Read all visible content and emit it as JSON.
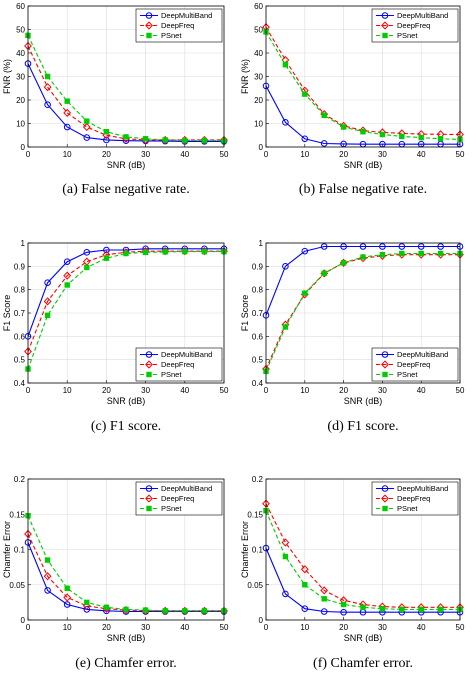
{
  "colors": {
    "DeepMultiBand": "#0000ff",
    "DeepFreq": "#ff0000",
    "PSnet": "#00cc00"
  },
  "chart_data": [
    {
      "id": "a",
      "type": "line",
      "caption": "(a) False negative rate.",
      "xlabel": "SNR (dB)",
      "ylabel": "FNR (%)",
      "xlim": [
        0,
        50
      ],
      "ylim": [
        0,
        60
      ],
      "xticks": [
        "0",
        "10",
        "20",
        "30",
        "40",
        "50"
      ],
      "yticks": [
        "0",
        "10",
        "20",
        "30",
        "40",
        "50",
        "60"
      ],
      "grid": true,
      "legend_position": "top-right",
      "x": [
        0,
        5,
        10,
        15,
        20,
        25,
        30,
        35,
        40,
        45,
        50
      ],
      "series": [
        {
          "name": "DeepMultiBand",
          "marker": "circle",
          "dash": "solid",
          "values": [
            35.5,
            18,
            8.5,
            4,
            3,
            2.7,
            2.6,
            2.5,
            2.4,
            2.4,
            2.4
          ]
        },
        {
          "name": "DeepFreq",
          "marker": "diamond",
          "dash": "dashed",
          "values": [
            43,
            25.5,
            14.5,
            8.5,
            5,
            3.5,
            3,
            3,
            3,
            3,
            3
          ]
        },
        {
          "name": "PSnet",
          "marker": "square",
          "dash": "dashed",
          "values": [
            47.5,
            30,
            19.5,
            11,
            6.5,
            4.3,
            3.5,
            3,
            2.8,
            2.8,
            2.7
          ]
        }
      ]
    },
    {
      "id": "b",
      "type": "line",
      "caption": "(b) False negative rate.",
      "xlabel": "SNR (dB)",
      "ylabel": "FNR (%)",
      "xlim": [
        0,
        50
      ],
      "ylim": [
        0,
        60
      ],
      "xticks": [
        "0",
        "10",
        "20",
        "30",
        "40",
        "50"
      ],
      "yticks": [
        "0",
        "10",
        "20",
        "30",
        "40",
        "50",
        "60"
      ],
      "grid": true,
      "legend_position": "top-right",
      "x": [
        0,
        5,
        10,
        15,
        20,
        25,
        30,
        35,
        40,
        45,
        50
      ],
      "series": [
        {
          "name": "DeepMultiBand",
          "marker": "circle",
          "dash": "solid",
          "values": [
            26,
            10.5,
            3.5,
            1.5,
            1.3,
            1.2,
            1.2,
            1.2,
            1.2,
            1.2,
            1.2
          ]
        },
        {
          "name": "DeepFreq",
          "marker": "diamond",
          "dash": "dashed",
          "values": [
            51,
            37,
            24,
            14,
            9,
            7,
            6.2,
            5.8,
            5.5,
            5.4,
            5.3
          ]
        },
        {
          "name": "PSnet",
          "marker": "square",
          "dash": "dashed",
          "values": [
            49,
            35,
            22.5,
            13.5,
            8.5,
            6.5,
            5.3,
            4.5,
            4,
            3.5,
            3.2
          ]
        }
      ]
    },
    {
      "id": "c",
      "type": "line",
      "caption": "(c) F1 score.",
      "xlabel": "SNR (dB)",
      "ylabel": "F1 Score",
      "xlim": [
        0,
        50
      ],
      "ylim": [
        0.4,
        1
      ],
      "xticks": [
        "0",
        "10",
        "20",
        "30",
        "40",
        "50"
      ],
      "yticks": [
        "0.4",
        "0.5",
        "0.6",
        "0.7",
        "0.8",
        "0.9",
        "1"
      ],
      "grid": true,
      "legend_position": "bottom-right",
      "x": [
        0,
        5,
        10,
        15,
        20,
        25,
        30,
        35,
        40,
        45,
        50
      ],
      "series": [
        {
          "name": "DeepMultiBand",
          "marker": "circle",
          "dash": "solid",
          "values": [
            0.6,
            0.83,
            0.92,
            0.96,
            0.97,
            0.97,
            0.975,
            0.975,
            0.975,
            0.975,
            0.975
          ]
        },
        {
          "name": "DeepFreq",
          "marker": "diamond",
          "dash": "dashed",
          "values": [
            0.535,
            0.75,
            0.86,
            0.92,
            0.95,
            0.96,
            0.965,
            0.965,
            0.965,
            0.965,
            0.965
          ]
        },
        {
          "name": "PSnet",
          "marker": "square",
          "dash": "dashed",
          "values": [
            0.46,
            0.69,
            0.82,
            0.895,
            0.935,
            0.955,
            0.96,
            0.962,
            0.963,
            0.963,
            0.963
          ]
        }
      ]
    },
    {
      "id": "d",
      "type": "line",
      "caption": "(d) F1 score.",
      "xlabel": "SNR (dB)",
      "ylabel": "F1 Score",
      "xlim": [
        0,
        50
      ],
      "ylim": [
        0.4,
        1
      ],
      "xticks": [
        "0",
        "10",
        "20",
        "30",
        "40",
        "50"
      ],
      "yticks": [
        "0.4",
        "0.5",
        "0.6",
        "0.7",
        "0.8",
        "0.9",
        "1"
      ],
      "grid": true,
      "legend_position": "bottom-right",
      "x": [
        0,
        5,
        10,
        15,
        20,
        25,
        30,
        35,
        40,
        45,
        50
      ],
      "series": [
        {
          "name": "DeepMultiBand",
          "marker": "circle",
          "dash": "solid",
          "values": [
            0.69,
            0.9,
            0.965,
            0.985,
            0.985,
            0.985,
            0.985,
            0.985,
            0.985,
            0.985,
            0.985
          ]
        },
        {
          "name": "DeepFreq",
          "marker": "diamond",
          "dash": "dashed",
          "values": [
            0.46,
            0.65,
            0.78,
            0.87,
            0.915,
            0.935,
            0.945,
            0.95,
            0.95,
            0.95,
            0.95
          ]
        },
        {
          "name": "PSnet",
          "marker": "square",
          "dash": "dashed",
          "values": [
            0.45,
            0.64,
            0.785,
            0.87,
            0.915,
            0.94,
            0.95,
            0.955,
            0.955,
            0.955,
            0.955
          ]
        }
      ]
    },
    {
      "id": "e",
      "type": "line",
      "caption": "(e) Chamfer error.",
      "xlabel": "SNR (dB)",
      "ylabel": "Chamfer Error",
      "xlim": [
        0,
        50
      ],
      "ylim": [
        0,
        0.2
      ],
      "xticks": [
        "0",
        "10",
        "20",
        "30",
        "40",
        "50"
      ],
      "yticks": [
        "0",
        "0.05",
        "0.1",
        "0.15",
        "0.2"
      ],
      "grid": true,
      "legend_position": "top-right",
      "x": [
        0,
        5,
        10,
        15,
        20,
        25,
        30,
        35,
        40,
        45,
        50
      ],
      "series": [
        {
          "name": "DeepMultiBand",
          "marker": "circle",
          "dash": "solid",
          "values": [
            0.11,
            0.042,
            0.022,
            0.015,
            0.013,
            0.012,
            0.012,
            0.012,
            0.012,
            0.012,
            0.012
          ]
        },
        {
          "name": "DeepFreq",
          "marker": "diamond",
          "dash": "dashed",
          "values": [
            0.122,
            0.062,
            0.032,
            0.02,
            0.016,
            0.014,
            0.013,
            0.013,
            0.013,
            0.013,
            0.013
          ]
        },
        {
          "name": "PSnet",
          "marker": "square",
          "dash": "dashed",
          "values": [
            0.148,
            0.085,
            0.045,
            0.025,
            0.018,
            0.015,
            0.014,
            0.013,
            0.013,
            0.013,
            0.013
          ]
        }
      ]
    },
    {
      "id": "f",
      "type": "line",
      "caption": "(f) Chamfer error.",
      "xlabel": "SNR (dB)",
      "ylabel": "Chamfer Error",
      "xlim": [
        0,
        50
      ],
      "ylim": [
        0,
        0.2
      ],
      "xticks": [
        "0",
        "10",
        "20",
        "30",
        "40",
        "50"
      ],
      "yticks": [
        "0",
        "0.05",
        "0.1",
        "0.15",
        "0.2"
      ],
      "grid": true,
      "legend_position": "top-right",
      "x": [
        0,
        5,
        10,
        15,
        20,
        25,
        30,
        35,
        40,
        45,
        50
      ],
      "series": [
        {
          "name": "DeepMultiBand",
          "marker": "circle",
          "dash": "solid",
          "values": [
            0.102,
            0.037,
            0.016,
            0.012,
            0.011,
            0.011,
            0.011,
            0.011,
            0.011,
            0.011,
            0.011
          ]
        },
        {
          "name": "DeepFreq",
          "marker": "diamond",
          "dash": "dashed",
          "values": [
            0.165,
            0.11,
            0.072,
            0.042,
            0.028,
            0.022,
            0.019,
            0.018,
            0.018,
            0.018,
            0.018
          ]
        },
        {
          "name": "PSnet",
          "marker": "square",
          "dash": "dashed",
          "values": [
            0.155,
            0.09,
            0.05,
            0.03,
            0.022,
            0.018,
            0.016,
            0.015,
            0.015,
            0.015,
            0.015
          ]
        }
      ]
    }
  ]
}
